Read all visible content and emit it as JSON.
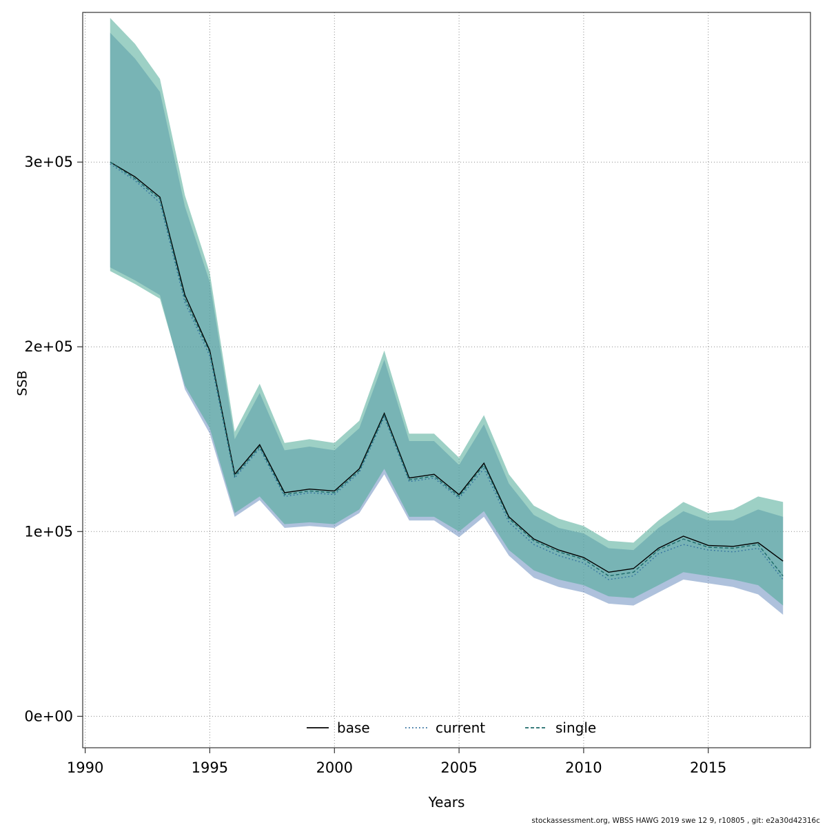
{
  "chart_data": {
    "type": "line",
    "title": "",
    "xlabel": "Years",
    "ylabel": "SSB",
    "footer": "stockassessment.org, WBSS HAWG 2019 swe 12 9, r10805 , git: e2a30d42316c",
    "xlim": [
      1989.9,
      2019.1
    ],
    "ylim": [
      -17000,
      381000
    ],
    "grid": true,
    "x_ticks": [
      1990,
      1995,
      2000,
      2005,
      2010,
      2015
    ],
    "x_tick_labels": [
      "1990",
      "1995",
      "2000",
      "2005",
      "2010",
      "2015"
    ],
    "y_ticks": [
      0,
      100000,
      200000,
      300000
    ],
    "y_tick_labels": [
      "0e+00",
      "1e+05",
      "2e+05",
      "3e+05"
    ],
    "legend_position": "bottom-center-inside",
    "legend": [
      {
        "label": "base",
        "color": "#000000",
        "style": "solid"
      },
      {
        "label": "current",
        "color": "#33709e",
        "style": "dotted"
      },
      {
        "label": "single",
        "color": "#1d6a6a",
        "style": "dashed"
      }
    ],
    "x": [
      1991,
      1992,
      1993,
      1994,
      1995,
      1996,
      1997,
      1998,
      1999,
      2000,
      2001,
      2002,
      2003,
      2004,
      2005,
      2006,
      2007,
      2008,
      2009,
      2010,
      2011,
      2012,
      2013,
      2014,
      2015,
      2016,
      2017,
      2018
    ],
    "series": [
      {
        "name": "base",
        "values": [
          300000,
          292000,
          281000,
          228000,
          198000,
          131000,
          147000,
          121000,
          123000,
          122000,
          134000,
          164000,
          129000,
          131000,
          120000,
          137000,
          108000,
          96000,
          90000,
          86000,
          78000,
          80000,
          91000,
          97500,
          92500,
          92000,
          94000,
          84000
        ]
      },
      {
        "name": "current",
        "band_color": "#6c8ebf",
        "values": [
          299000,
          290000,
          278000,
          224000,
          195000,
          129000,
          145000,
          119000,
          121000,
          120000,
          132000,
          162000,
          127000,
          129000,
          118000,
          134000,
          105000,
          93000,
          87000,
          83000,
          74000,
          76000,
          88000,
          93000,
          90000,
          89000,
          91000,
          74000
        ],
        "band_lower": [
          243000,
          236000,
          228000,
          177000,
          153000,
          108000,
          117000,
          102000,
          103000,
          102000,
          110000,
          131000,
          106000,
          106000,
          97000,
          108000,
          87000,
          75000,
          70000,
          67000,
          61000,
          60000,
          67000,
          74000,
          72000,
          70000,
          66000,
          55000
        ],
        "band_upper": [
          370000,
          356000,
          338000,
          276000,
          235000,
          150000,
          175000,
          144000,
          146000,
          144000,
          156000,
          193000,
          149000,
          149000,
          136000,
          158000,
          126000,
          109000,
          102000,
          99000,
          91000,
          90000,
          102000,
          111000,
          106000,
          106000,
          112000,
          108000
        ]
      },
      {
        "name": "single",
        "band_color": "#4daa96",
        "values": [
          300000,
          291000,
          280000,
          226000,
          197000,
          130000,
          146000,
          120000,
          122000,
          121000,
          133000,
          163000,
          128000,
          130000,
          119000,
          136000,
          107000,
          95000,
          89000,
          85000,
          76000,
          78000,
          90000,
          96000,
          91500,
          91000,
          93000,
          76000
        ],
        "band_lower": [
          241000,
          234000,
          226000,
          179000,
          156000,
          110000,
          119000,
          104000,
          105000,
          104000,
          112000,
          134000,
          108000,
          108000,
          100000,
          111000,
          90000,
          79000,
          74000,
          71000,
          65000,
          64000,
          71000,
          78000,
          76000,
          74000,
          71000,
          60000
        ],
        "band_upper": [
          378000,
          364000,
          345000,
          282000,
          240000,
          154000,
          180000,
          148000,
          150000,
          148000,
          160000,
          198000,
          153000,
          153000,
          140000,
          163000,
          131000,
          114000,
          107000,
          103000,
          95000,
          94000,
          106000,
          116000,
          110000,
          112000,
          119000,
          116000
        ]
      }
    ]
  }
}
